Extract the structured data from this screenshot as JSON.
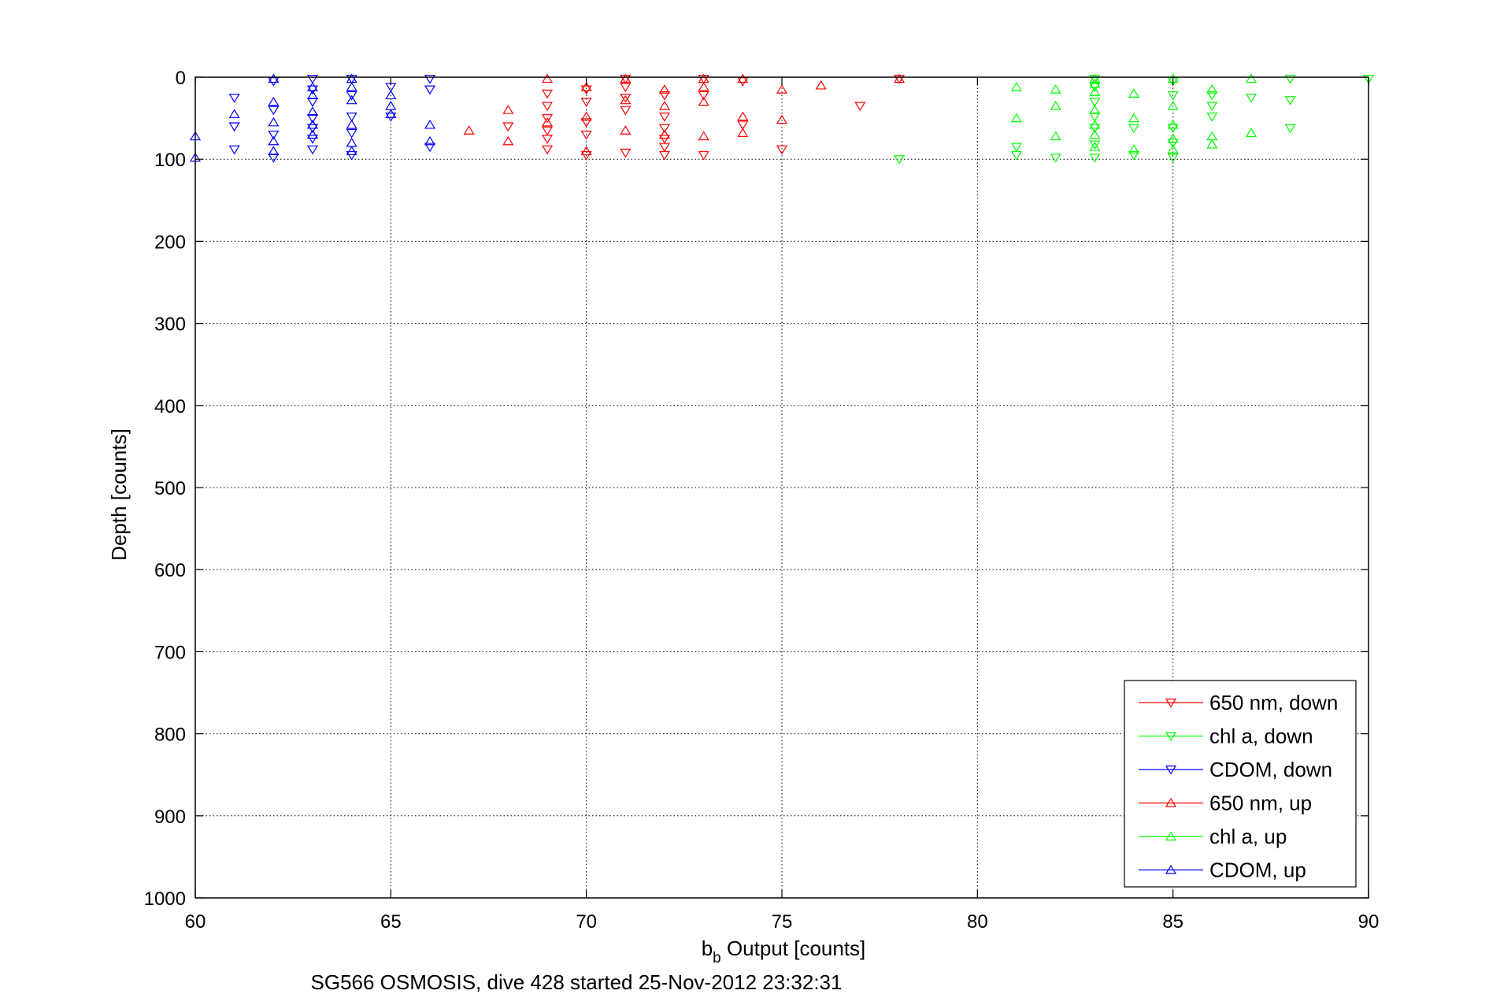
{
  "chart_data": {
    "type": "scatter",
    "xlabel_main": "b",
    "xlabel_sub": "b",
    "xlabel_rest": " Output [counts]",
    "ylabel": "Depth [counts]",
    "caption": "SG566 OSMOSIS, dive 428 started 25-Nov-2012 23:32:31",
    "xlim": [
      60,
      90
    ],
    "ylim": [
      0,
      1000
    ],
    "y_reversed": true,
    "xticks": [
      60,
      65,
      70,
      75,
      80,
      85,
      90
    ],
    "yticks": [
      0,
      100,
      200,
      300,
      400,
      500,
      600,
      700,
      800,
      900,
      1000
    ],
    "grid": true,
    "legend_placement": "bottom-right",
    "series": [
      {
        "name": "650 nm, down",
        "color": "#ff0000",
        "marker": "triangle-down",
        "points": [
          [
            69,
            20
          ],
          [
            69,
            35
          ],
          [
            69,
            50
          ],
          [
            69,
            65
          ],
          [
            69,
            75
          ],
          [
            69,
            88
          ],
          [
            70,
            15
          ],
          [
            70,
            30
          ],
          [
            70,
            55
          ],
          [
            70,
            70
          ],
          [
            70,
            95
          ],
          [
            71,
            2
          ],
          [
            71,
            12
          ],
          [
            71,
            25
          ],
          [
            71,
            40
          ],
          [
            71,
            92
          ],
          [
            72,
            22
          ],
          [
            72,
            48
          ],
          [
            72,
            62
          ],
          [
            72,
            75
          ],
          [
            72,
            85
          ],
          [
            72,
            95
          ],
          [
            73,
            2
          ],
          [
            73,
            22
          ],
          [
            73,
            95
          ],
          [
            74,
            5
          ],
          [
            74,
            58
          ],
          [
            75,
            88
          ],
          [
            77,
            35
          ],
          [
            78,
            2
          ],
          [
            68,
            60
          ]
        ]
      },
      {
        "name": "chl a, down",
        "color": "#00ff00",
        "marker": "triangle-down",
        "points": [
          [
            78,
            100
          ],
          [
            81,
            85
          ],
          [
            81,
            95
          ],
          [
            82,
            98
          ],
          [
            83,
            2
          ],
          [
            83,
            12
          ],
          [
            83,
            30
          ],
          [
            83,
            48
          ],
          [
            83,
            62
          ],
          [
            83,
            82
          ],
          [
            83,
            98
          ],
          [
            84,
            62
          ],
          [
            84,
            95
          ],
          [
            85,
            5
          ],
          [
            85,
            22
          ],
          [
            85,
            62
          ],
          [
            85,
            80
          ],
          [
            85,
            98
          ],
          [
            86,
            22
          ],
          [
            86,
            35
          ],
          [
            86,
            48
          ],
          [
            87,
            25
          ],
          [
            88,
            2
          ],
          [
            88,
            28
          ],
          [
            88,
            62
          ],
          [
            90,
            2
          ]
        ]
      },
      {
        "name": "CDOM, down",
        "color": "#0000ff",
        "marker": "triangle-down",
        "points": [
          [
            61,
            25
          ],
          [
            61,
            60
          ],
          [
            61,
            88
          ],
          [
            62,
            5
          ],
          [
            62,
            40
          ],
          [
            62,
            70
          ],
          [
            62,
            98
          ],
          [
            63,
            2
          ],
          [
            63,
            15
          ],
          [
            63,
            30
          ],
          [
            63,
            50
          ],
          [
            63,
            62
          ],
          [
            63,
            75
          ],
          [
            63,
            88
          ],
          [
            64,
            2
          ],
          [
            64,
            22
          ],
          [
            64,
            48
          ],
          [
            64,
            68
          ],
          [
            64,
            95
          ],
          [
            65,
            12
          ],
          [
            65,
            48
          ],
          [
            66,
            2
          ],
          [
            66,
            15
          ],
          [
            66,
            85
          ]
        ]
      },
      {
        "name": "650 nm, up",
        "color": "#ff0000",
        "marker": "triangle-up",
        "points": [
          [
            67,
            65
          ],
          [
            68,
            40
          ],
          [
            68,
            78
          ],
          [
            69,
            2
          ],
          [
            69,
            55
          ],
          [
            70,
            12
          ],
          [
            70,
            48
          ],
          [
            70,
            90
          ],
          [
            71,
            2
          ],
          [
            71,
            28
          ],
          [
            71,
            65
          ],
          [
            72,
            15
          ],
          [
            72,
            35
          ],
          [
            72,
            70
          ],
          [
            73,
            2
          ],
          [
            73,
            12
          ],
          [
            73,
            30
          ],
          [
            73,
            72
          ],
          [
            74,
            2
          ],
          [
            74,
            48
          ],
          [
            74,
            68
          ],
          [
            75,
            15
          ],
          [
            75,
            52
          ],
          [
            76,
            10
          ],
          [
            78,
            2
          ]
        ]
      },
      {
        "name": "chl a, up",
        "color": "#00ff00",
        "marker": "triangle-up",
        "points": [
          [
            81,
            12
          ],
          [
            81,
            50
          ],
          [
            82,
            15
          ],
          [
            82,
            35
          ],
          [
            82,
            72
          ],
          [
            83,
            2
          ],
          [
            83,
            8
          ],
          [
            83,
            18
          ],
          [
            83,
            40
          ],
          [
            83,
            58
          ],
          [
            83,
            70
          ],
          [
            83,
            85
          ],
          [
            84,
            20
          ],
          [
            84,
            50
          ],
          [
            84,
            88
          ],
          [
            85,
            2
          ],
          [
            85,
            35
          ],
          [
            85,
            58
          ],
          [
            85,
            75
          ],
          [
            85,
            88
          ],
          [
            86,
            15
          ],
          [
            86,
            72
          ],
          [
            86,
            82
          ],
          [
            87,
            2
          ],
          [
            87,
            68
          ]
        ]
      },
      {
        "name": "CDOM, up",
        "color": "#0000ff",
        "marker": "triangle-up",
        "points": [
          [
            60,
            72
          ],
          [
            60,
            98
          ],
          [
            61,
            45
          ],
          [
            62,
            2
          ],
          [
            62,
            30
          ],
          [
            62,
            55
          ],
          [
            62,
            78
          ],
          [
            62,
            90
          ],
          [
            63,
            12
          ],
          [
            63,
            22
          ],
          [
            63,
            42
          ],
          [
            63,
            58
          ],
          [
            63,
            70
          ],
          [
            64,
            2
          ],
          [
            64,
            12
          ],
          [
            64,
            28
          ],
          [
            64,
            58
          ],
          [
            64,
            80
          ],
          [
            64,
            90
          ],
          [
            65,
            22
          ],
          [
            65,
            35
          ],
          [
            65,
            45
          ],
          [
            66,
            58
          ],
          [
            66,
            78
          ]
        ]
      }
    ]
  }
}
